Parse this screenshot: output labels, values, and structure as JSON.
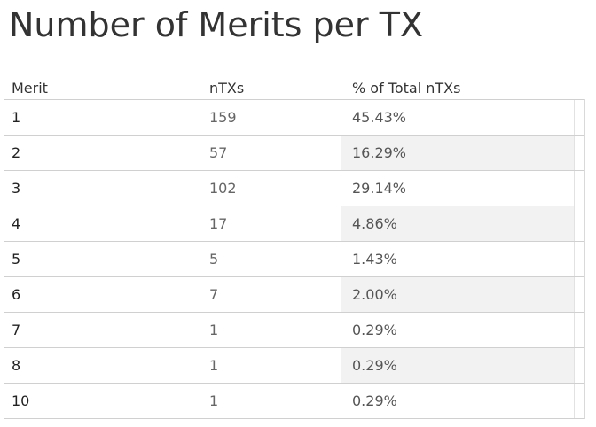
{
  "chart_data": {
    "type": "table",
    "title": "Number of Merits per TX",
    "columns": [
      "Merit",
      "nTXs",
      "% of Total nTXs"
    ],
    "rows": [
      {
        "merit": "1",
        "ntxs": "159",
        "pct": "45.43%"
      },
      {
        "merit": "2",
        "ntxs": "57",
        "pct": "16.29%"
      },
      {
        "merit": "3",
        "ntxs": "102",
        "pct": "29.14%"
      },
      {
        "merit": "4",
        "ntxs": "17",
        "pct": "4.86%"
      },
      {
        "merit": "5",
        "ntxs": "5",
        "pct": "1.43%"
      },
      {
        "merit": "6",
        "ntxs": "7",
        "pct": "2.00%"
      },
      {
        "merit": "7",
        "ntxs": "1",
        "pct": "0.29%"
      },
      {
        "merit": "8",
        "ntxs": "1",
        "pct": "0.29%"
      },
      {
        "merit": "10",
        "ntxs": "1",
        "pct": "0.29%"
      }
    ]
  }
}
